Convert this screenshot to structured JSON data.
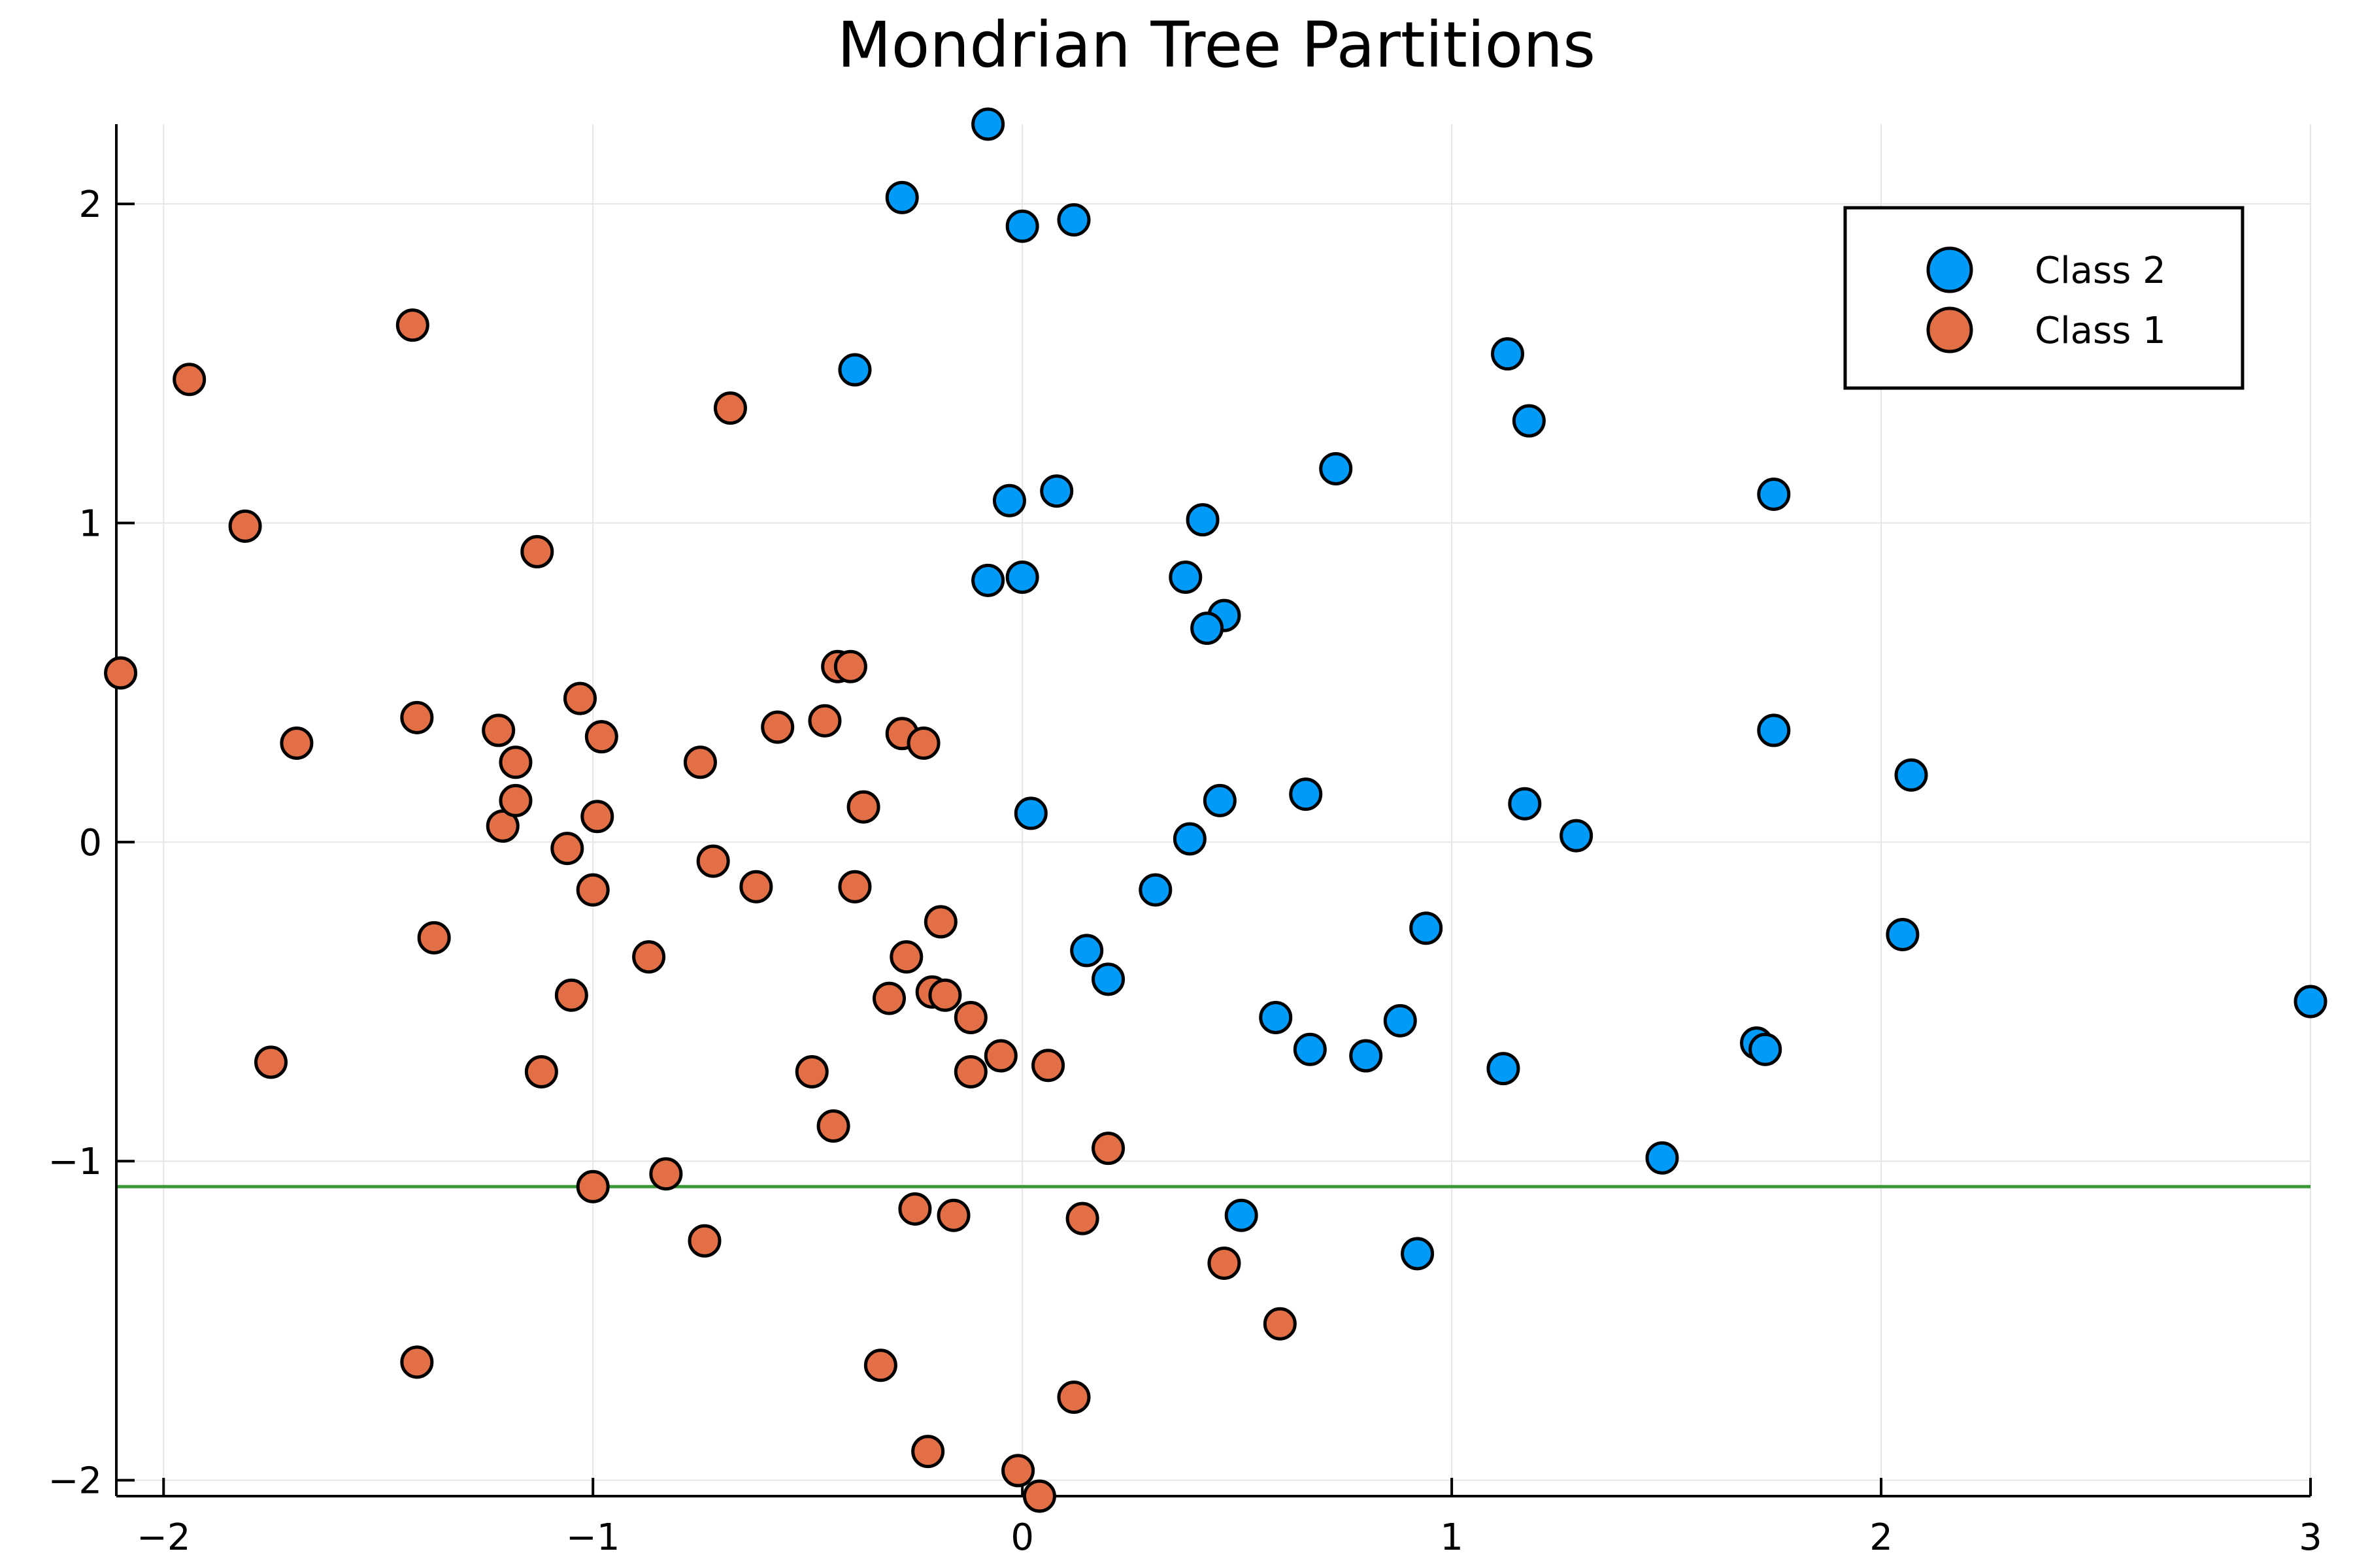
{
  "chart_data": {
    "type": "scatter",
    "title": "Mondrian Tree Partitions",
    "xlim": [
      -2.11,
      3.0
    ],
    "ylim": [
      -2.05,
      2.25
    ],
    "xticks": [
      {
        "value": -2,
        "label": "−2"
      },
      {
        "value": -1,
        "label": "−1"
      },
      {
        "value": 0,
        "label": "0"
      },
      {
        "value": 1,
        "label": "1"
      },
      {
        "value": 2,
        "label": "2"
      },
      {
        "value": 3,
        "label": "3"
      }
    ],
    "yticks": [
      {
        "value": -2,
        "label": "−2"
      },
      {
        "value": -1,
        "label": "−1"
      },
      {
        "value": 0,
        "label": "0"
      },
      {
        "value": 1,
        "label": "1"
      },
      {
        "value": 2,
        "label": "2"
      }
    ],
    "grid": true,
    "legend_position": "top-right",
    "partition_lines": [
      {
        "orientation": "horizontal",
        "y": -1.08,
        "color": "#3a9a3a"
      }
    ],
    "series": [
      {
        "name": "Class 2",
        "color": "#009af9",
        "points": [
          [
            -0.08,
            2.25
          ],
          [
            -0.28,
            2.02
          ],
          [
            0.0,
            1.93
          ],
          [
            0.12,
            1.95
          ],
          [
            -0.39,
            1.48
          ],
          [
            -0.03,
            1.07
          ],
          [
            0.08,
            1.1
          ],
          [
            -0.08,
            0.82
          ],
          [
            0.0,
            0.83
          ],
          [
            0.42,
            1.01
          ],
          [
            0.38,
            0.83
          ],
          [
            0.47,
            0.71
          ],
          [
            0.43,
            0.67
          ],
          [
            0.73,
            1.17
          ],
          [
            1.13,
            1.53
          ],
          [
            1.18,
            1.32
          ],
          [
            1.75,
            1.09
          ],
          [
            1.75,
            0.35
          ],
          [
            2.07,
            0.21
          ],
          [
            0.02,
            0.09
          ],
          [
            0.39,
            0.01
          ],
          [
            0.46,
            0.13
          ],
          [
            0.66,
            0.15
          ],
          [
            1.17,
            0.12
          ],
          [
            1.29,
            0.02
          ],
          [
            0.31,
            -0.15
          ],
          [
            0.94,
            -0.27
          ],
          [
            0.15,
            -0.34
          ],
          [
            0.2,
            -0.43
          ],
          [
            0.59,
            -0.55
          ],
          [
            0.67,
            -0.65
          ],
          [
            0.8,
            -0.67
          ],
          [
            0.88,
            -0.56
          ],
          [
            1.12,
            -0.71
          ],
          [
            1.71,
            -0.63
          ],
          [
            1.73,
            -0.65
          ],
          [
            2.05,
            -0.29
          ],
          [
            3.0,
            -0.5
          ],
          [
            1.49,
            -0.99
          ],
          [
            0.51,
            -1.17
          ],
          [
            0.92,
            -1.29
          ]
        ]
      },
      {
        "name": "Class 1",
        "color": "#e26f46",
        "points": [
          [
            -2.1,
            0.53
          ],
          [
            -1.94,
            1.45
          ],
          [
            -1.81,
            0.99
          ],
          [
            -1.69,
            0.31
          ],
          [
            -1.75,
            -0.69
          ],
          [
            -1.42,
            1.62
          ],
          [
            -1.41,
            0.39
          ],
          [
            -1.37,
            -0.3
          ],
          [
            -1.22,
            0.35
          ],
          [
            -1.21,
            0.05
          ],
          [
            -1.18,
            0.25
          ],
          [
            -1.18,
            0.13
          ],
          [
            -1.13,
            0.91
          ],
          [
            -1.12,
            -0.72
          ],
          [
            -1.06,
            -0.02
          ],
          [
            -1.05,
            -0.48
          ],
          [
            -1.03,
            0.45
          ],
          [
            -1.0,
            -0.15
          ],
          [
            -0.99,
            0.08
          ],
          [
            -0.98,
            0.33
          ],
          [
            -1.0,
            -1.08
          ],
          [
            -0.87,
            -0.36
          ],
          [
            -0.83,
            -1.04
          ],
          [
            -0.75,
            0.25
          ],
          [
            -0.74,
            -1.25
          ],
          [
            -0.72,
            -0.06
          ],
          [
            -0.68,
            1.36
          ],
          [
            -0.62,
            -0.14
          ],
          [
            -0.57,
            0.36
          ],
          [
            -0.49,
            -0.72
          ],
          [
            -0.46,
            0.38
          ],
          [
            -0.44,
            -0.89
          ],
          [
            -0.43,
            0.55
          ],
          [
            -0.4,
            0.55
          ],
          [
            -0.39,
            -0.14
          ],
          [
            -0.37,
            0.11
          ],
          [
            -0.33,
            -1.64
          ],
          [
            -0.31,
            -0.49
          ],
          [
            -0.28,
            0.34
          ],
          [
            -0.27,
            -0.36
          ],
          [
            -0.25,
            -1.15
          ],
          [
            -0.23,
            0.31
          ],
          [
            -0.22,
            -1.91
          ],
          [
            -0.21,
            -0.47
          ],
          [
            -0.19,
            -0.25
          ],
          [
            -0.18,
            -0.48
          ],
          [
            -0.16,
            -1.17
          ],
          [
            -0.12,
            -0.72
          ],
          [
            -0.12,
            -0.55
          ],
          [
            -0.05,
            -0.67
          ],
          [
            -0.01,
            -1.97
          ],
          [
            0.04,
            -2.05
          ],
          [
            0.06,
            -0.7
          ],
          [
            0.12,
            -1.74
          ],
          [
            0.14,
            -1.18
          ],
          [
            0.2,
            -0.96
          ],
          [
            0.47,
            -1.32
          ],
          [
            0.6,
            -1.51
          ],
          [
            -1.41,
            -1.63
          ]
        ]
      }
    ]
  }
}
